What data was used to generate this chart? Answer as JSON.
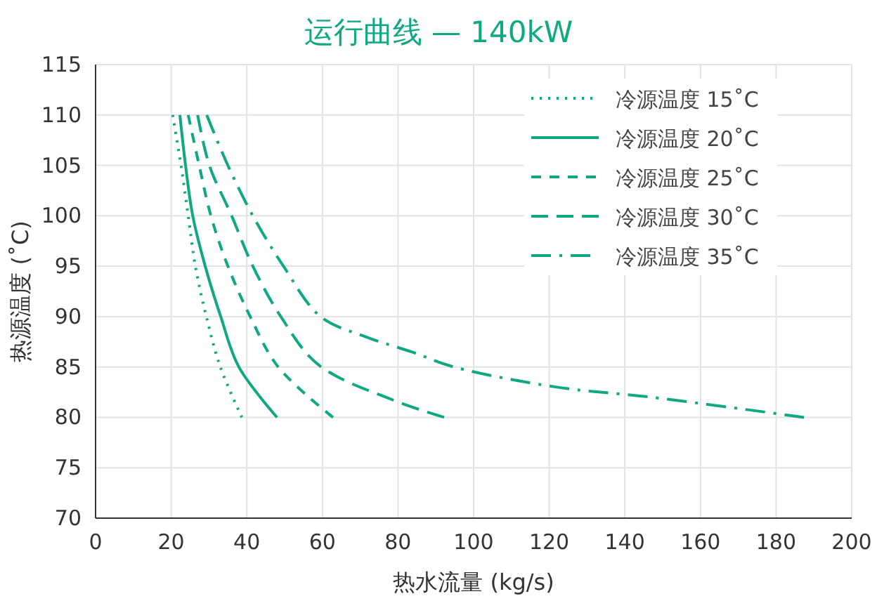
{
  "chart_data": {
    "type": "line",
    "title": "运行曲线 — 140kW",
    "xlabel": "热水流量 (kg/s)",
    "ylabel": "热源温度 (˚C)",
    "xlim": [
      0,
      200
    ],
    "ylim": [
      70,
      115
    ],
    "xticks": [
      0,
      20,
      40,
      60,
      80,
      100,
      120,
      140,
      160,
      180,
      200
    ],
    "yticks": [
      70,
      75,
      80,
      85,
      90,
      95,
      100,
      105,
      110,
      115
    ],
    "grid": true,
    "legend": "top right",
    "series": [
      {
        "name": "冷源温度 15˚C",
        "color": "#0fa882",
        "line_style": "dotted",
        "x": [
          20.4,
          22.6,
          24.5,
          26.4,
          29.3,
          33,
          38.7
        ],
        "values": [
          110,
          105,
          100,
          95,
          90,
          85,
          80
        ]
      },
      {
        "name": "冷源温度 20˚C",
        "color": "#0fa882",
        "line_style": "solid",
        "x": [
          22.3,
          23.8,
          25.7,
          29,
          33.1,
          37.9,
          48
        ],
        "values": [
          110,
          105,
          100,
          95,
          90,
          85,
          80
        ]
      },
      {
        "name": "冷源温度 25˚C",
        "color": "#0fa882",
        "line_style": "dashed",
        "x": [
          24.5,
          27.4,
          30.5,
          35,
          40.9,
          48.3,
          62.8
        ],
        "values": [
          110,
          105,
          100,
          95,
          90,
          85,
          80
        ]
      },
      {
        "name": "冷源温度 30˚C",
        "color": "#0fa882",
        "line_style": "longdash",
        "x": [
          27,
          30.1,
          36,
          41.6,
          49,
          59,
          78.8,
          92.2
        ],
        "values": [
          110,
          105,
          100,
          95,
          90,
          85.2,
          81.7,
          80
        ]
      },
      {
        "name": "冷源温度 35˚C",
        "color": "#0fa882",
        "line_style": "dashdot",
        "x": [
          29.4,
          35,
          41.6,
          49.7,
          59.5,
          71.4,
          83.6,
          94.8,
          122,
          147,
          187.4
        ],
        "values": [
          110,
          105,
          100,
          95,
          90,
          88,
          86.5,
          85,
          83,
          82,
          80
        ]
      }
    ]
  }
}
